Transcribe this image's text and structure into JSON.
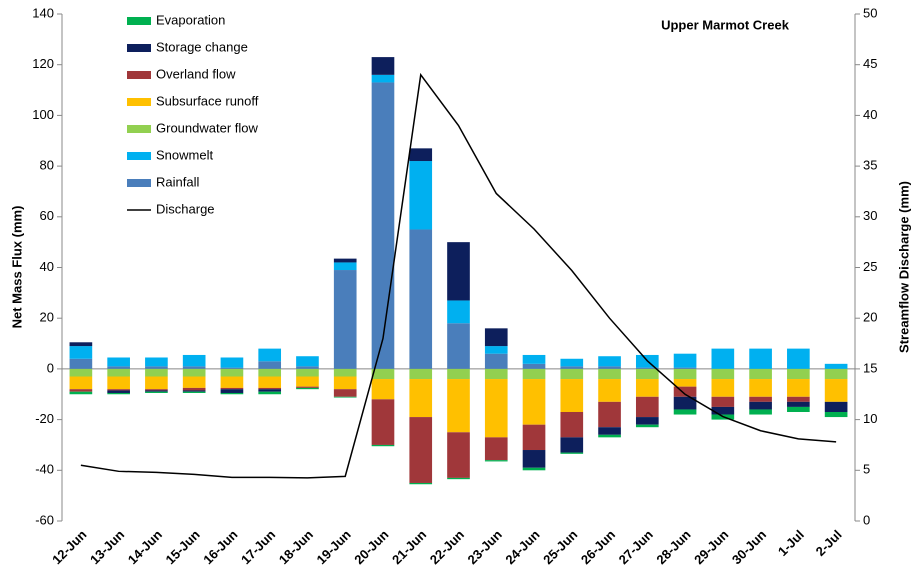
{
  "chart_data": {
    "type": "bar",
    "stacked": true,
    "title": "Upper Marmot Creek",
    "y_label": "Net Mass Flux (mm)",
    "y2_label": "Streamflow Discharge (mm)",
    "categories": [
      "12-Jun",
      "13-Jun",
      "14-Jun",
      "15-Jun",
      "16-Jun",
      "17-Jun",
      "18-Jun",
      "19-Jun",
      "20-Jun",
      "21-Jun",
      "22-Jun",
      "23-Jun",
      "24-Jun",
      "25-Jun",
      "26-Jun",
      "27-Jun",
      "28-Jun",
      "29-Jun",
      "30-Jun",
      "1-Jul",
      "2-Jul"
    ],
    "series": [
      {
        "name": "Rainfall",
        "color": "#4a7ebb",
        "values": [
          4,
          1,
          1,
          1,
          0.5,
          3,
          1,
          39,
          113,
          55,
          18,
          6,
          2,
          1,
          1,
          0.5,
          0.5,
          0,
          0,
          0,
          0
        ]
      },
      {
        "name": "Snowmelt",
        "color": "#00b0f0",
        "values": [
          5,
          3.5,
          3.5,
          4.5,
          4,
          5,
          4,
          3,
          3,
          27,
          9,
          3,
          3.5,
          3,
          4,
          5,
          5.5,
          8,
          8,
          8,
          2
        ]
      },
      {
        "name": "Groundwater flow",
        "color": "#92d050",
        "values": [
          -3,
          -3,
          -3,
          -3,
          -3,
          -3,
          -3,
          -3,
          -4,
          -4,
          -4,
          -4,
          -4,
          -4,
          -4,
          -4,
          -4,
          -4,
          -4,
          -4,
          -4
        ]
      },
      {
        "name": "Subsurface runoff",
        "color": "#ffc000",
        "values": [
          -5,
          -5,
          -5,
          -4.5,
          -4.5,
          -4.5,
          -4,
          -5,
          -8,
          -15,
          -21,
          -23,
          -18,
          -13,
          -9,
          -7,
          -3,
          -7,
          -7,
          -7,
          -9
        ]
      },
      {
        "name": "Overland flow",
        "color": "#a0373a",
        "values": [
          -1,
          -0.5,
          -0.5,
          -1,
          -0.5,
          -0.5,
          -0.5,
          -3,
          -18,
          -26,
          -18,
          -9,
          -10,
          -10,
          -10,
          -8,
          -4,
          -4,
          -2,
          -2,
          0
        ]
      },
      {
        "name": "Storage change",
        "color": "#0d1f5c",
        "values": [
          1.5,
          -1,
          -0.5,
          -0.5,
          -1.5,
          -1,
          0,
          1.5,
          7,
          5,
          23,
          7,
          -7,
          -6,
          -3,
          -3,
          -5,
          -3,
          -3,
          -2,
          -4
        ]
      },
      {
        "name": "Evaporation",
        "color": "#00b050",
        "values": [
          -1,
          -0.5,
          -0.5,
          -0.5,
          -0.5,
          -1,
          -0.5,
          -0.3,
          -0.5,
          -0.5,
          -0.5,
          -0.5,
          -1,
          -0.5,
          -1,
          -1,
          -2,
          -2,
          -2,
          -2,
          -2
        ]
      }
    ],
    "line_series": [
      {
        "name": "Discharge",
        "color": "#000000",
        "axis": "y2",
        "values": [
          5.5,
          4.9,
          4.8,
          4.6,
          4.3,
          4.3,
          4.25,
          4.4,
          18,
          44,
          39,
          32.3,
          28.8,
          24.7,
          20,
          15.8,
          12.5,
          10.3,
          8.9,
          8.1,
          7.8
        ]
      }
    ],
    "ylim": [
      -60,
      140
    ],
    "yticks": [
      -60,
      -40,
      -20,
      0,
      20,
      40,
      60,
      80,
      100,
      120,
      140
    ],
    "y2lim": [
      0,
      50
    ],
    "y2ticks": [
      0,
      5,
      10,
      15,
      20,
      25,
      30,
      35,
      40,
      45,
      50
    ],
    "grid": false
  }
}
